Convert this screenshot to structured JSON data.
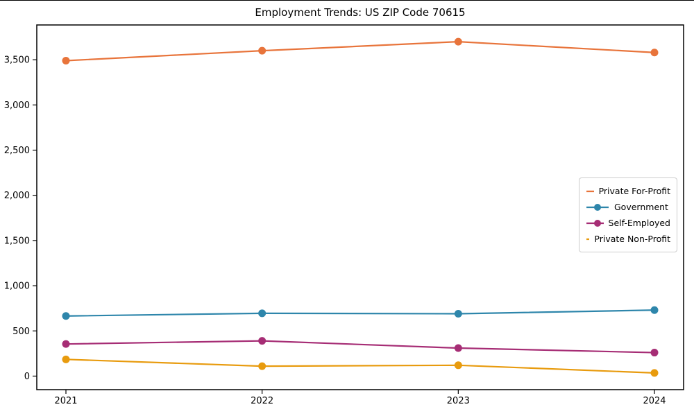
{
  "chart_data": {
    "type": "line",
    "title": "Employment Trends: US ZIP Code 70615",
    "xlabel": "",
    "ylabel": "",
    "grid": false,
    "legend_position": "middle-right",
    "marker": "circle",
    "categories": [
      "2021",
      "2022",
      "2023",
      "2024"
    ],
    "series": [
      {
        "name": "Private For-Profit",
        "color": "#E8743B",
        "values": [
          3490,
          3600,
          3700,
          3580
        ]
      },
      {
        "name": "Government",
        "color": "#2E86AB",
        "values": [
          665,
          695,
          690,
          730
        ]
      },
      {
        "name": "Self-Employed",
        "color": "#A62D75",
        "values": [
          355,
          390,
          310,
          260
        ]
      },
      {
        "name": "Private Non-Profit",
        "color": "#E89B0E",
        "values": [
          185,
          110,
          120,
          35
        ]
      }
    ],
    "y_ticks": [
      {
        "value": 0,
        "label": "0"
      },
      {
        "value": 500,
        "label": "500"
      },
      {
        "value": 1000,
        "label": "1,000"
      },
      {
        "value": 1500,
        "label": "1,500"
      },
      {
        "value": 2000,
        "label": "2,000"
      },
      {
        "value": 2500,
        "label": "2,500"
      },
      {
        "value": 3000,
        "label": "3,000"
      },
      {
        "value": 3500,
        "label": "3,500"
      }
    ],
    "ylim": [
      -150,
      3885
    ]
  }
}
